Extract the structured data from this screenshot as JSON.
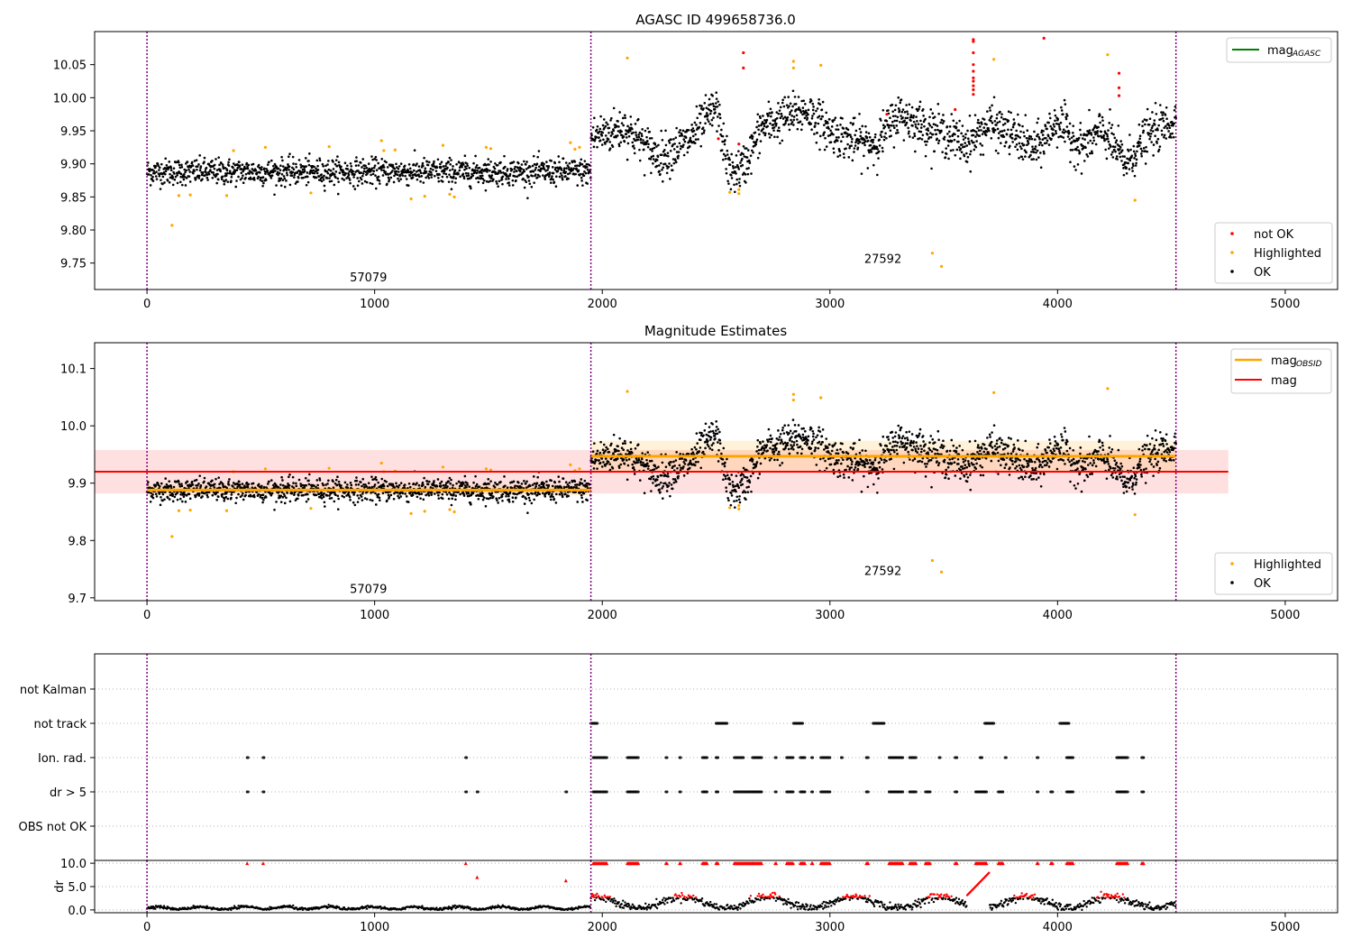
{
  "chart_data": [
    {
      "type": "scatter",
      "title": "AGASC ID 499658736.0",
      "xlim": [
        -230,
        5230
      ],
      "ylim": [
        9.71,
        10.1
      ],
      "xticks": [
        0,
        1000,
        2000,
        3000,
        4000,
        5000
      ],
      "yticks": [
        9.75,
        9.8,
        9.85,
        9.9,
        9.95,
        10.0,
        10.05
      ],
      "obs_boundaries": [
        0,
        1950,
        4520
      ],
      "annotations": [
        {
          "text": "57079",
          "x": 970,
          "y": 9.722
        },
        {
          "text": "27592",
          "x": 3230,
          "y": 9.75
        }
      ],
      "legend_line": {
        "label": "mag",
        "subscript": "AGASC",
        "color": "#008000",
        "placement": "top-right"
      },
      "legend_points": [
        {
          "label": "not OK",
          "color": "#ff0000"
        },
        {
          "label": "Highlighted",
          "color": "#ffa500"
        },
        {
          "label": "OK",
          "color": "#000000"
        }
      ],
      "legend_points_placement": "bottom-right",
      "segments": [
        {
          "x": [
            0,
            1950
          ],
          "level": [
            9.888,
            9.888
          ],
          "scatter": 0.011
        },
        {
          "x": [
            1950,
            2100,
            2250,
            2380,
            2500,
            2560,
            2620,
            2700,
            2800,
            2900,
            3000,
            3100,
            3200,
            3300,
            3400,
            3500,
            3600,
            3700,
            3800,
            3900,
            4000,
            4100,
            4200,
            4300,
            4400,
            4520
          ],
          "level": [
            9.94,
            9.955,
            9.91,
            9.935,
            9.985,
            9.885,
            9.895,
            9.955,
            9.97,
            9.98,
            9.95,
            9.935,
            9.93,
            9.975,
            9.96,
            9.945,
            9.93,
            9.96,
            9.945,
            9.92,
            9.965,
            9.925,
            9.95,
            9.9,
            9.945,
            9.965
          ],
          "scatter": 0.02
        }
      ],
      "highlighted_points": [
        [
          110,
          9.807
        ],
        [
          140,
          9.852
        ],
        [
          190,
          9.853
        ],
        [
          350,
          9.852
        ],
        [
          380,
          9.92
        ],
        [
          520,
          9.925
        ],
        [
          720,
          9.856
        ],
        [
          800,
          9.926
        ],
        [
          1030,
          9.935
        ],
        [
          1040,
          9.92
        ],
        [
          1090,
          9.921
        ],
        [
          1160,
          9.847
        ],
        [
          1220,
          9.851
        ],
        [
          1300,
          9.928
        ],
        [
          1330,
          9.854
        ],
        [
          1350,
          9.85
        ],
        [
          1490,
          9.925
        ],
        [
          1510,
          9.923
        ],
        [
          1860,
          9.932
        ],
        [
          1880,
          9.922
        ],
        [
          1900,
          9.925
        ],
        [
          2110,
          10.06
        ],
        [
          2560,
          9.857
        ],
        [
          2600,
          9.855
        ],
        [
          2600,
          9.861
        ],
        [
          2840,
          10.055
        ],
        [
          2840,
          10.045
        ],
        [
          2960,
          10.049
        ],
        [
          3450,
          9.765
        ],
        [
          3490,
          9.745
        ],
        [
          3720,
          10.058
        ],
        [
          4220,
          10.065
        ],
        [
          4340,
          9.845
        ]
      ],
      "not_ok_points": [
        [
          2510,
          9.938
        ],
        [
          2620,
          10.068
        ],
        [
          2620,
          10.045
        ],
        [
          2600,
          9.93
        ],
        [
          3250,
          9.975
        ],
        [
          3550,
          9.982
        ],
        [
          3630,
          10.088
        ],
        [
          3630,
          10.085
        ],
        [
          3630,
          10.068
        ],
        [
          3630,
          10.05
        ],
        [
          3630,
          10.04
        ],
        [
          3630,
          10.03
        ],
        [
          3630,
          10.025
        ],
        [
          3630,
          10.018
        ],
        [
          3630,
          10.012
        ],
        [
          3630,
          10.005
        ],
        [
          3940,
          10.09
        ],
        [
          4270,
          10.037
        ],
        [
          4270,
          10.015
        ],
        [
          4270,
          10.003
        ]
      ]
    },
    {
      "type": "scatter",
      "title": "Magnitude Estimates",
      "xlim": [
        -230,
        5230
      ],
      "ylim": [
        9.695,
        10.145
      ],
      "xticks": [
        0,
        1000,
        2000,
        3000,
        4000,
        5000
      ],
      "yticks": [
        9.7,
        9.8,
        9.9,
        10.0,
        10.1
      ],
      "obs_boundaries": [
        0,
        1950,
        4520
      ],
      "annotations": [
        {
          "text": "57079",
          "x": 970,
          "y": 9.708
        },
        {
          "text": "27592",
          "x": 3230,
          "y": 9.74
        }
      ],
      "mag_line": {
        "label": "mag",
        "color": "#ff0000",
        "value": 9.92,
        "band": [
          9.882,
          9.958
        ],
        "x": [
          -230,
          4750
        ]
      },
      "obsid_lines": [
        {
          "x": [
            0,
            1950
          ],
          "value": 9.888,
          "band": [
            9.879,
            9.897
          ]
        },
        {
          "x": [
            1950,
            4520
          ],
          "value": 9.947,
          "band": [
            9.92,
            9.974
          ]
        }
      ],
      "legend_lines": [
        {
          "label": "mag",
          "subscript": "OBSID",
          "color": "#ffa500"
        },
        {
          "label": "mag",
          "subscript": "",
          "color": "#ff0000"
        }
      ],
      "legend_lines_placement": "top-right",
      "legend_points": [
        {
          "label": "Highlighted",
          "color": "#ffa500"
        },
        {
          "label": "OK",
          "color": "#000000"
        }
      ],
      "legend_points_placement": "bottom-right"
    },
    {
      "type": "scatter",
      "categories": [
        "not Kalman",
        "not track",
        "Ion. rad.",
        "dr > 5",
        "OBS not OK"
      ],
      "xlim": [
        -230,
        5230
      ],
      "flags": {
        "not track": [
          [
            1950,
            1980
          ],
          [
            2500,
            2550
          ],
          [
            2840,
            2880
          ],
          [
            3190,
            3240
          ],
          [
            3680,
            3720
          ],
          [
            4010,
            4050
          ]
        ],
        "Ion. rad.": [
          [
            440,
            445
          ],
          [
            510,
            515
          ],
          [
            1400,
            1405
          ],
          [
            1960,
            2020
          ],
          [
            2110,
            2160
          ],
          [
            2280,
            2285
          ],
          [
            2340,
            2345
          ],
          [
            2440,
            2460
          ],
          [
            2500,
            2510
          ],
          [
            2580,
            2620
          ],
          [
            2660,
            2700
          ],
          [
            2760,
            2765
          ],
          [
            2810,
            2840
          ],
          [
            2870,
            2890
          ],
          [
            2920,
            2925
          ],
          [
            2960,
            3000
          ],
          [
            3050,
            3055
          ],
          [
            3160,
            3170
          ],
          [
            3260,
            3320
          ],
          [
            3350,
            3380
          ],
          [
            3480,
            3485
          ],
          [
            3550,
            3560
          ],
          [
            3660,
            3670
          ],
          [
            3770,
            3775
          ],
          [
            3910,
            3915
          ],
          [
            4040,
            4070
          ],
          [
            4260,
            4310
          ],
          [
            4370,
            4380
          ]
        ],
        "dr > 5": [
          [
            440,
            445
          ],
          [
            510,
            515
          ],
          [
            1400,
            1405
          ],
          [
            1450,
            1455
          ],
          [
            1840,
            1845
          ],
          [
            1960,
            2020
          ],
          [
            2110,
            2160
          ],
          [
            2280,
            2285
          ],
          [
            2340,
            2345
          ],
          [
            2440,
            2460
          ],
          [
            2500,
            2510
          ],
          [
            2580,
            2660
          ],
          [
            2660,
            2700
          ],
          [
            2760,
            2765
          ],
          [
            2810,
            2840
          ],
          [
            2870,
            2890
          ],
          [
            2920,
            2925
          ],
          [
            2960,
            3000
          ],
          [
            3160,
            3170
          ],
          [
            3260,
            3320
          ],
          [
            3350,
            3380
          ],
          [
            3420,
            3440
          ],
          [
            3550,
            3560
          ],
          [
            3640,
            3690
          ],
          [
            3740,
            3760
          ],
          [
            3910,
            3915
          ],
          [
            3970,
            3980
          ],
          [
            4040,
            4070
          ],
          [
            4260,
            4310
          ],
          [
            4370,
            4380
          ]
        ]
      },
      "obs_boundaries": [
        0,
        1950,
        4520
      ]
    },
    {
      "type": "scatter",
      "ylabel": "dr",
      "xlim": [
        -230,
        5230
      ],
      "ylim": [
        -0.6,
        10.6
      ],
      "xticks": [
        0,
        1000,
        2000,
        3000,
        4000,
        5000
      ],
      "yticks": [
        0,
        5,
        10
      ],
      "obs_boundaries": [
        0,
        1950,
        4520
      ],
      "clip_points_red": [
        [
          440,
          10
        ],
        [
          510,
          10
        ],
        [
          1400,
          10
        ],
        [
          1450,
          7
        ],
        [
          1840,
          6.3
        ]
      ],
      "dr_level": {
        "before": 0.5,
        "after": 1.6
      }
    }
  ]
}
